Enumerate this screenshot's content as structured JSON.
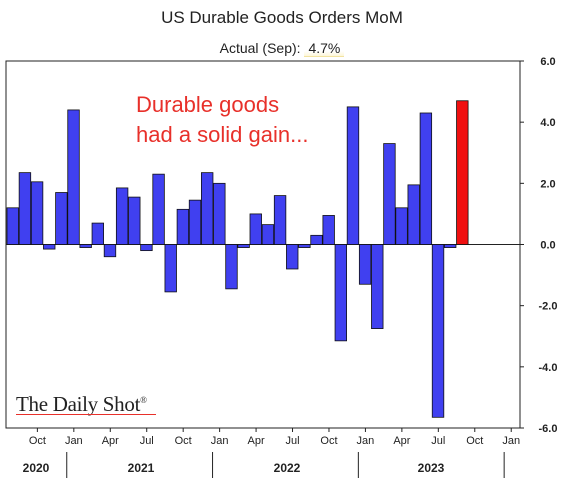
{
  "chart_data": {
    "type": "bar",
    "title": "US Durable Goods Orders MoM",
    "subtitle_label": "Actual (Sep):",
    "subtitle_value": "4.7%",
    "annotation": "Durable goods\nhad a solid gain...",
    "source_logo": "The Daily Shot",
    "y_axis_position": "right",
    "ylim": [
      -6,
      6
    ],
    "yticks": [
      "6.0",
      "4.0",
      "2.0",
      "0.0",
      "-2.0",
      "-4.0",
      "-6.0"
    ],
    "xticks": [
      "Oct",
      "Jan",
      "Apr",
      "Jul",
      "Oct",
      "Jan",
      "Apr",
      "Jul",
      "Oct",
      "Jan",
      "Apr",
      "Jul",
      "Oct",
      "Jan"
    ],
    "years": [
      "2020",
      "2021",
      "2022",
      "2023"
    ],
    "grid": false,
    "categories": [
      "2020-08",
      "2020-09",
      "2020-10",
      "2020-11",
      "2020-12",
      "2021-01",
      "2021-02",
      "2021-03",
      "2021-04",
      "2021-05",
      "2021-06",
      "2021-07",
      "2021-08",
      "2021-09",
      "2021-10",
      "2021-11",
      "2021-12",
      "2022-01",
      "2022-02",
      "2022-03",
      "2022-04",
      "2022-05",
      "2022-06",
      "2022-07",
      "2022-08",
      "2022-09",
      "2022-10",
      "2022-11",
      "2022-12",
      "2023-01",
      "2023-02",
      "2023-03",
      "2023-04",
      "2023-05",
      "2023-06",
      "2023-07",
      "2023-08",
      "2023-09"
    ],
    "values": [
      1.2,
      2.35,
      2.05,
      -0.15,
      1.7,
      4.4,
      -0.1,
      0.7,
      -0.4,
      1.85,
      1.55,
      -0.2,
      2.3,
      -1.55,
      1.15,
      1.45,
      2.35,
      2.0,
      -1.45,
      -0.1,
      1.0,
      0.65,
      1.6,
      -0.8,
      -0.1,
      0.3,
      0.95,
      -3.15,
      4.5,
      -1.3,
      -2.75,
      3.3,
      1.2,
      1.95,
      4.3,
      -5.65,
      -0.1,
      4.7
    ],
    "bar_color": "#4040f0",
    "highlight_color": "#f01010",
    "highlight_index": 37
  }
}
